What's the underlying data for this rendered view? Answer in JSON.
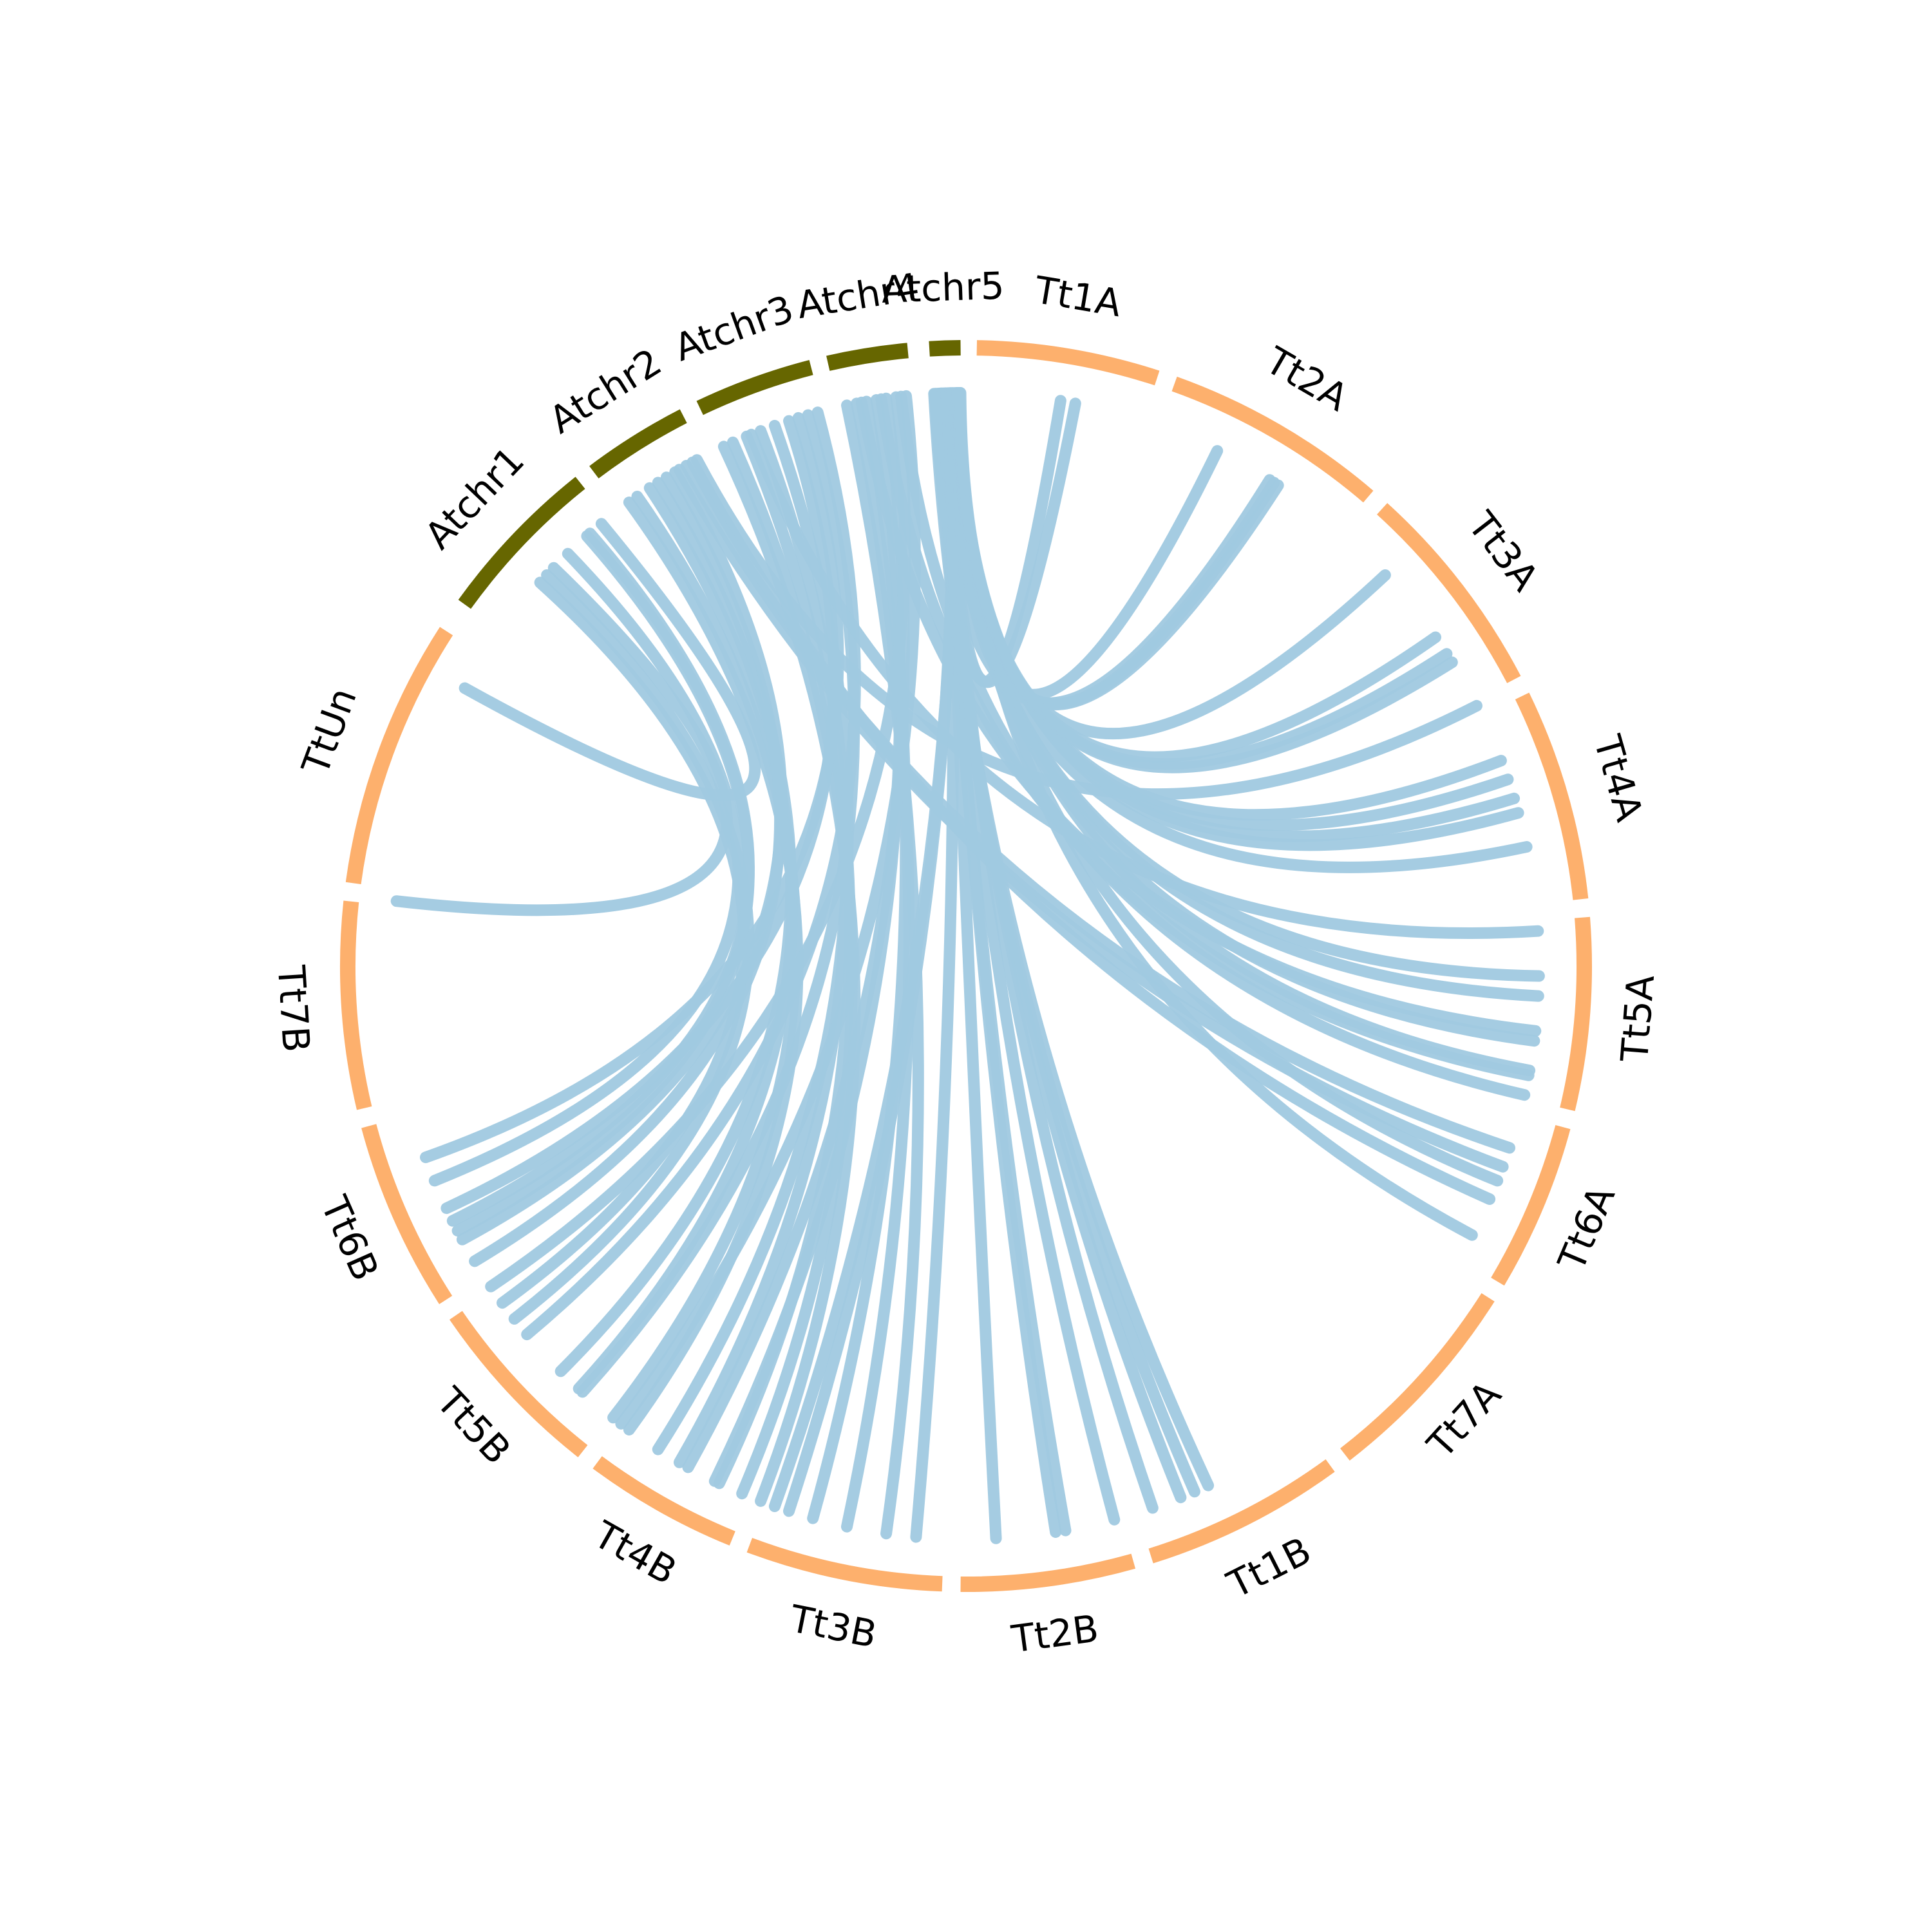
{
  "colors": {
    "arabidopsis": "#666600",
    "wheat": "#fdb06d",
    "link": "#a0c9e0",
    "label": "#000000"
  },
  "chart_data": {
    "type": "chord",
    "segments": [
      {
        "name": "Atchr1",
        "group": "arabidopsis",
        "start": 305.8,
        "end": 321.4
      },
      {
        "name": "Atchr2",
        "group": "arabidopsis",
        "start": 323.0,
        "end": 332.8
      },
      {
        "name": "Atchr3",
        "group": "arabidopsis",
        "start": 334.5,
        "end": 345.5
      },
      {
        "name": "Atchr4",
        "group": "arabidopsis",
        "start": 347.1,
        "end": 354.6
      },
      {
        "name": "Atchr5",
        "group": "arabidopsis",
        "start": 356.6,
        "end": 359.5
      },
      {
        "name": "Tt1A",
        "group": "wheat",
        "start": 1.0,
        "end": 18.0
      },
      {
        "name": "Tt2A",
        "group": "wheat",
        "start": 19.7,
        "end": 40.6
      },
      {
        "name": "Tt3A",
        "group": "wheat",
        "start": 42.3,
        "end": 62.4
      },
      {
        "name": "Tt4A",
        "group": "wheat",
        "start": 64.1,
        "end": 83.8
      },
      {
        "name": "Tt5A",
        "group": "wheat",
        "start": 85.5,
        "end": 103.4
      },
      {
        "name": "Tt6A",
        "group": "wheat",
        "start": 105.1,
        "end": 120.7
      },
      {
        "name": "Tt7A",
        "group": "wheat",
        "start": 122.4,
        "end": 142.2
      },
      {
        "name": "Tt1B",
        "group": "wheat",
        "start": 143.9,
        "end": 162.6
      },
      {
        "name": "Tt2B",
        "group": "wheat",
        "start": 164.3,
        "end": 180.5
      },
      {
        "name": "Tt3B",
        "group": "wheat",
        "start": 182.2,
        "end": 200.5
      },
      {
        "name": "Tt4B",
        "group": "wheat",
        "start": 202.2,
        "end": 216.6
      },
      {
        "name": "Tt5B",
        "group": "wheat",
        "start": 218.3,
        "end": 235.6
      },
      {
        "name": "Tt6B",
        "group": "wheat",
        "start": 237.3,
        "end": 255.0
      },
      {
        "name": "Tt7B",
        "group": "wheat",
        "start": 256.7,
        "end": 276.0
      },
      {
        "name": "TtUn",
        "group": "wheat",
        "start": 277.7,
        "end": 302.8
      }
    ],
    "links": [
      [
        313.0,
        232.0
      ],
      [
        312.0,
        234.0
      ],
      [
        319.0,
        243.6
      ],
      [
        318.6,
        242.5
      ],
      [
        316.0,
        248.0
      ],
      [
        314.0,
        276.5
      ],
      [
        320.5,
        299.0
      ],
      [
        324.0,
        216.0
      ],
      [
        325.0,
        218.0
      ],
      [
        326.5,
        222.5
      ],
      [
        327.5,
        225.0
      ],
      [
        328.5,
        239.0
      ],
      [
        329.5,
        241.5
      ],
      [
        330.0,
        110.5
      ],
      [
        330.8,
        108.5
      ],
      [
        331.5,
        114.0
      ],
      [
        332.0,
        63.0
      ],
      [
        335.0,
        201.0
      ],
      [
        336.0,
        203.0
      ],
      [
        337.5,
        205.5
      ],
      [
        339.0,
        210.0
      ],
      [
        340.5,
        212.5
      ],
      [
        342.0,
        245.0
      ],
      [
        343.0,
        250.5
      ],
      [
        344.0,
        222.0
      ],
      [
        345.0,
        230.0
      ],
      [
        338.0,
        86.5
      ],
      [
        348.0,
        188.0
      ],
      [
        349.0,
        192.0
      ],
      [
        350.0,
        195.5
      ],
      [
        351.0,
        206.0
      ],
      [
        352.0,
        209.0
      ],
      [
        353.0,
        236.0
      ],
      [
        354.0,
        217.0
      ],
      [
        349.5,
        96.5
      ],
      [
        351.5,
        101.0
      ],
      [
        353.5,
        103.0
      ],
      [
        356.8,
        155.0
      ],
      [
        357.0,
        156.5
      ],
      [
        357.3,
        158.0
      ],
      [
        357.6,
        170.0
      ],
      [
        357.9,
        171.0
      ],
      [
        358.1,
        177.0
      ],
      [
        358.3,
        185.0
      ],
      [
        358.6,
        198.0
      ],
      [
        358.8,
        199.5
      ],
      [
        359.0,
        69.0
      ],
      [
        359.1,
        71.0
      ],
      [
        359.2,
        73.0
      ],
      [
        359.3,
        74.5
      ],
      [
        359.4,
        118.0
      ],
      [
        357.2,
        78.0
      ],
      [
        357.5,
        91.0
      ],
      [
        357.8,
        93.0
      ],
      [
        358.0,
        97.5
      ],
      [
        358.4,
        100.5
      ],
      [
        358.7,
        112.0
      ],
      [
        359.05,
        58.0
      ],
      [
        359.15,
        57.0
      ],
      [
        359.25,
        47.0
      ],
      [
        359.35,
        32.5
      ],
      [
        358.9,
        26.0
      ],
      [
        358.2,
        9.5
      ],
      [
        357.4,
        11.0
      ],
      [
        356.9,
        32.0
      ],
      [
        358.5,
        33.0
      ],
      [
        359.45,
        55.0
      ],
      [
        357.7,
        165.0
      ],
      [
        358.05,
        161.0
      ]
    ],
    "title": "",
    "xlabel": "",
    "ylabel": ""
  }
}
